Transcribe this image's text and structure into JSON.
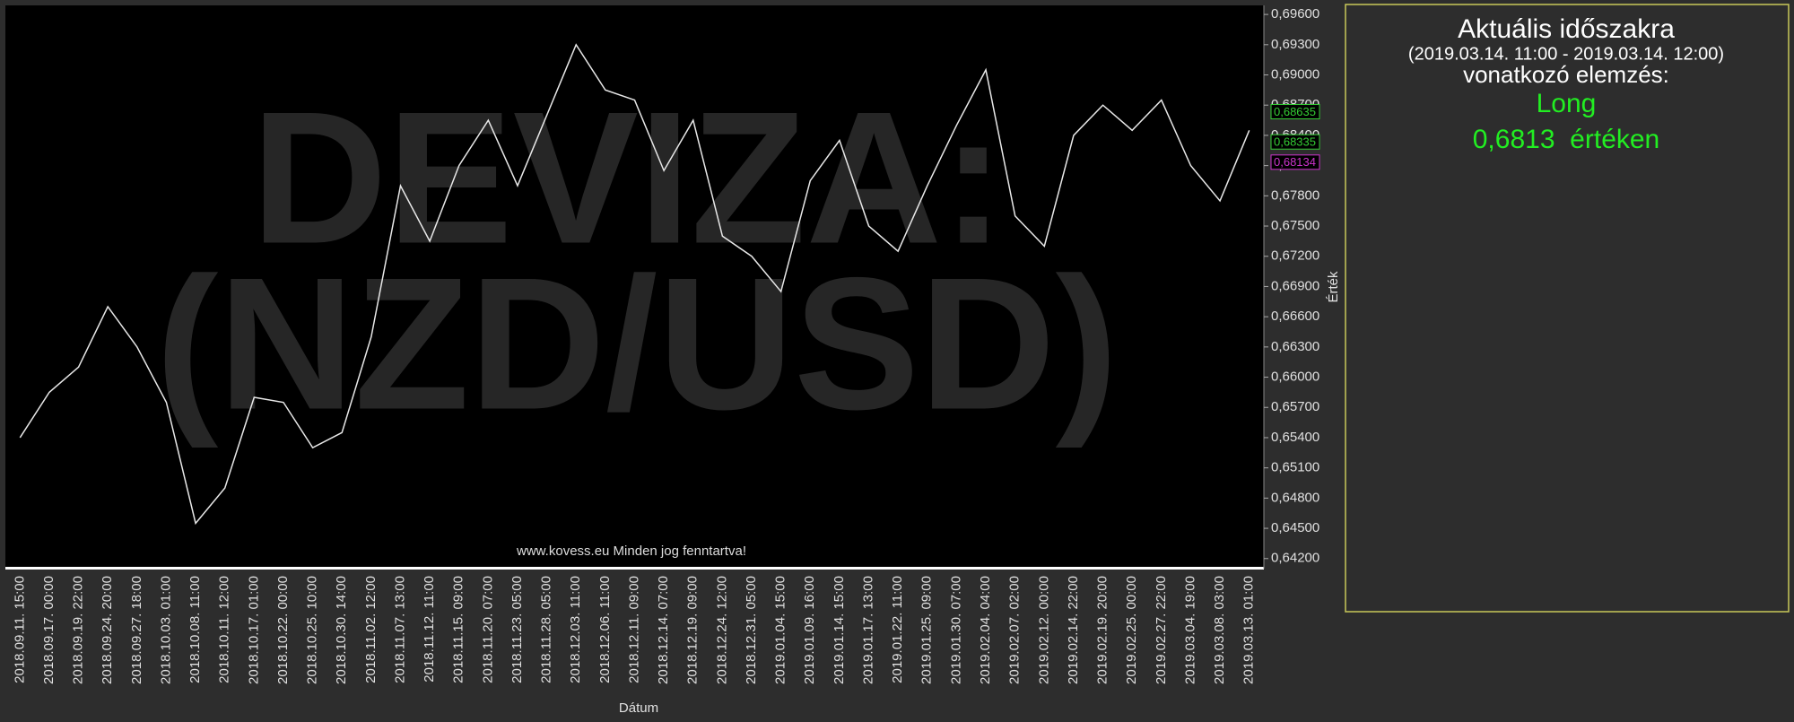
{
  "chart_data": {
    "type": "line",
    "watermark": [
      "DEVIZA:",
      "(NZD/USD)"
    ],
    "footer": "www.kovess.eu Minden jog fenntartva!",
    "x_label": "Dátum",
    "y_label": "Érték",
    "categories": [
      "2018.09.11. 15:00",
      "2018.09.17. 00:00",
      "2018.09.19. 22:00",
      "2018.09.24. 20:00",
      "2018.09.27. 18:00",
      "2018.10.03. 01:00",
      "2018.10.08. 11:00",
      "2018.10.11. 12:00",
      "2018.10.17. 01:00",
      "2018.10.22. 00:00",
      "2018.10.25. 10:00",
      "2018.10.30. 14:00",
      "2018.11.02. 12:00",
      "2018.11.07. 13:00",
      "2018.11.12. 11:00",
      "2018.11.15. 09:00",
      "2018.11.20. 07:00",
      "2018.11.23. 05:00",
      "2018.11.28. 05:00",
      "2018.12.03. 11:00",
      "2018.12.06. 11:00",
      "2018.12.11. 09:00",
      "2018.12.14. 07:00",
      "2018.12.19. 09:00",
      "2018.12.24. 12:00",
      "2018.12.31. 05:00",
      "2019.01.04. 15:00",
      "2019.01.09. 16:00",
      "2019.01.14. 15:00",
      "2019.01.17. 13:00",
      "2019.01.22. 11:00",
      "2019.01.25. 09:00",
      "2019.01.30. 07:00",
      "2019.02.04. 04:00",
      "2019.02.07. 02:00",
      "2019.02.12. 00:00",
      "2019.02.14. 22:00",
      "2019.02.19. 20:00",
      "2019.02.25. 00:00",
      "2019.02.27. 22:00",
      "2019.03.04. 19:00",
      "2019.03.08. 03:00",
      "2019.03.13. 01:00"
    ],
    "values": [
      0.654,
      0.6585,
      0.661,
      0.667,
      0.663,
      0.6575,
      0.6455,
      0.649,
      0.658,
      0.6575,
      0.653,
      0.6545,
      0.664,
      0.679,
      0.6735,
      0.681,
      0.6855,
      0.679,
      0.686,
      0.693,
      0.6885,
      0.6875,
      0.6805,
      0.6855,
      0.674,
      0.672,
      0.6685,
      0.6795,
      0.6835,
      0.675,
      0.6725,
      0.679,
      0.685,
      0.6905,
      0.676,
      0.673,
      0.684,
      0.687,
      0.6845,
      0.6875,
      0.681,
      0.6775,
      0.6845
    ],
    "color": "#e8e8e8",
    "ylim": [
      0.641,
      0.6969
    ],
    "yticks": [
      {
        "value": 0.642,
        "label": "0,64200"
      },
      {
        "value": 0.645,
        "label": "0,64500"
      },
      {
        "value": 0.648,
        "label": "0,64800"
      },
      {
        "value": 0.651,
        "label": "0,65100"
      },
      {
        "value": 0.654,
        "label": "0,65400"
      },
      {
        "value": 0.657,
        "label": "0,65700"
      },
      {
        "value": 0.66,
        "label": "0,66000"
      },
      {
        "value": 0.663,
        "label": "0,66300"
      },
      {
        "value": 0.666,
        "label": "0,66600"
      },
      {
        "value": 0.669,
        "label": "0,66900"
      },
      {
        "value": 0.672,
        "label": "0,67200"
      },
      {
        "value": 0.675,
        "label": "0,67500"
      },
      {
        "value": 0.678,
        "label": "0,67800"
      },
      {
        "value": 0.681,
        "label": "0,68100"
      },
      {
        "value": 0.684,
        "label": "0,68400"
      },
      {
        "value": 0.687,
        "label": "0,68700"
      },
      {
        "value": 0.69,
        "label": "0,69000"
      },
      {
        "value": 0.693,
        "label": "0,69300"
      },
      {
        "value": 0.696,
        "label": "0,69600"
      }
    ],
    "price_tags": [
      {
        "value": 0.68635,
        "label": "0,68635",
        "color": "#33cc33"
      },
      {
        "value": 0.68335,
        "label": "0,68335",
        "color": "#33cc33"
      },
      {
        "value": 0.68134,
        "label": "0,68134",
        "color": "#cc33cc"
      }
    ]
  },
  "panel": {
    "title": "Aktuális időszakra",
    "period": "(2019.03.14. 11:00 - 2019.03.14. 12:00)",
    "subtitle": "vonatkozó elemzés:",
    "signal": "Long",
    "price": "0,6813  értéken"
  }
}
